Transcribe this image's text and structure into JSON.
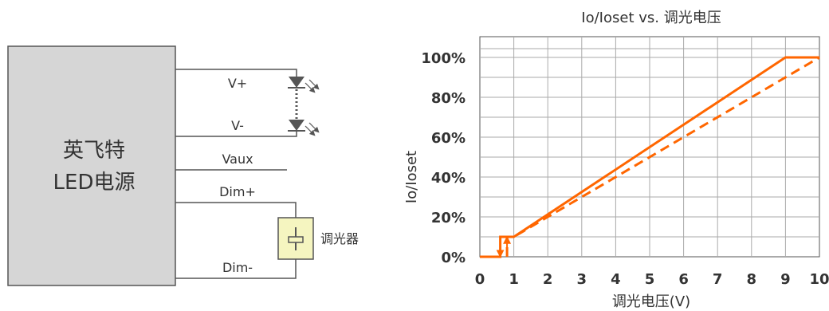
{
  "diagram": {
    "psu_line1": "英飞特",
    "psu_line2": "LED电源",
    "label_vplus": "V+",
    "label_vminus": "V-",
    "label_vaux": "Vaux",
    "label_dimplus": "Dim+",
    "label_dimminus": "Dim-",
    "label_dimmer": "调光器",
    "colors": {
      "psu_fill": "#d6d6d6",
      "dimmer_fill": "#f5f5c0",
      "dimmer_stroke": "#555555",
      "wire": "#555555",
      "led": "#555555"
    }
  },
  "chart_data": {
    "type": "line",
    "title": "Io/Ioset vs. 调光电压",
    "xlabel": "调光电压(V)",
    "ylabel": "Io/Ioset",
    "xlim": [
      0,
      10
    ],
    "ylim": [
      0,
      100
    ],
    "x_ticks": [
      0,
      1,
      2,
      3,
      4,
      5,
      6,
      7,
      8,
      9,
      10
    ],
    "y_ticks": [
      0,
      20,
      40,
      60,
      80,
      100
    ],
    "y_tick_labels": [
      "0%",
      "20%",
      "40%",
      "60%",
      "80%",
      "100%"
    ],
    "grid": true,
    "series": [
      {
        "style": "solid",
        "color": "#ff6600",
        "points": [
          [
            0,
            0
          ],
          [
            0.6,
            0
          ],
          [
            0.6,
            10
          ],
          [
            1,
            10
          ],
          [
            9,
            100
          ],
          [
            10,
            100
          ]
        ]
      },
      {
        "style": "dashed",
        "color": "#ff6600",
        "points": [
          [
            0.8,
            0
          ],
          [
            0.8,
            10
          ],
          [
            1,
            10
          ],
          [
            10,
            100
          ]
        ]
      }
    ]
  }
}
